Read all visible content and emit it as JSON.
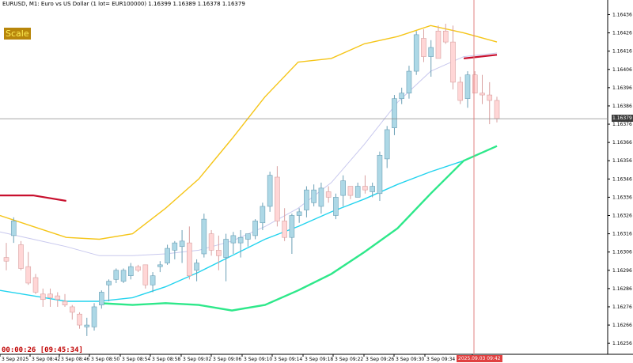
{
  "header": {
    "title": "EURUSD, M1:  Euro vs US Dollar (1 lot= EUR100000)  1.16399 1.16389 1.16378 1.16379"
  },
  "badge": {
    "label": "Scale"
  },
  "timer": {
    "text": "00:00:26 [09:45:34]"
  },
  "current_price": {
    "label": "1.16379"
  },
  "time_marker": {
    "label": "2025.09.03 09:42"
  },
  "colors": {
    "bull_body": "#add8e6",
    "bear_body": "#ffd6d6",
    "bull_edge": "#6a9fb5",
    "bear_edge": "#d9a0a0",
    "ma_yellow": "#f5c518",
    "ma_cyan": "#22d3ee",
    "ma_green": "#2ee88a",
    "ma_red": "#c8102e",
    "ma_lavender": "#c8c8ee",
    "vline": "#e08080"
  },
  "chart_data": {
    "type": "candlestick",
    "symbol": "EURUSD",
    "timeframe": "M1",
    "ylim": [
      1.1625,
      1.16444
    ],
    "y_ticks": [
      "1.16436",
      "1.16426",
      "1.16416",
      "1.16406",
      "1.16396",
      "1.16386",
      "1.16376",
      "1.16366",
      "1.16356",
      "1.16346",
      "1.16336",
      "1.16326",
      "1.16316",
      "1.16306",
      "1.16296",
      "1.16286",
      "1.16276",
      "1.16266",
      "1.16256"
    ],
    "x_ticks": [
      "3 Sep 2025",
      "3 Sep 08:42",
      "3 Sep 08:46",
      "3 Sep 08:50",
      "3 Sep 08:54",
      "3 Sep 08:58",
      "3 Sep 09:02",
      "3 Sep 09:06",
      "3 Sep 09:10",
      "3 Sep 09:14",
      "3 Sep 09:18",
      "3 Sep 09:22",
      "3 Sep 09:26",
      "3 Sep 09:30",
      "3 Sep 09:34",
      "3 Sep 09:42"
    ],
    "candles": [
      {
        "o": 1.16303,
        "h": 1.16311,
        "l": 1.16296,
        "c": 1.16301
      },
      {
        "o": 1.16315,
        "h": 1.16325,
        "l": 1.16311,
        "c": 1.16323
      },
      {
        "o": 1.1631,
        "h": 1.16312,
        "l": 1.16296,
        "c": 1.16297
      },
      {
        "o": 1.16298,
        "h": 1.16306,
        "l": 1.16288,
        "c": 1.16289
      },
      {
        "o": 1.16292,
        "h": 1.16294,
        "l": 1.16283,
        "c": 1.16284
      },
      {
        "o": 1.16283,
        "h": 1.16286,
        "l": 1.16276,
        "c": 1.1628
      },
      {
        "o": 1.16283,
        "h": 1.16286,
        "l": 1.16276,
        "c": 1.16281
      },
      {
        "o": 1.16282,
        "h": 1.16284,
        "l": 1.16276,
        "c": 1.1628
      },
      {
        "o": 1.16279,
        "h": 1.16283,
        "l": 1.16276,
        "c": 1.16277
      },
      {
        "o": 1.16276,
        "h": 1.16277,
        "l": 1.16269,
        "c": 1.16273
      },
      {
        "o": 1.16272,
        "h": 1.16273,
        "l": 1.16264,
        "c": 1.16266
      },
      {
        "o": 1.16265,
        "h": 1.1627,
        "l": 1.1626,
        "c": 1.16266
      },
      {
        "o": 1.16265,
        "h": 1.16278,
        "l": 1.16263,
        "c": 1.16276
      },
      {
        "o": 1.16277,
        "h": 1.16285,
        "l": 1.16275,
        "c": 1.16284
      },
      {
        "o": 1.16288,
        "h": 1.16291,
        "l": 1.16279,
        "c": 1.1629
      },
      {
        "o": 1.16291,
        "h": 1.16297,
        "l": 1.16289,
        "c": 1.16296
      },
      {
        "o": 1.1629,
        "h": 1.16297,
        "l": 1.16289,
        "c": 1.16296
      },
      {
        "o": 1.16293,
        "h": 1.163,
        "l": 1.16291,
        "c": 1.16298
      },
      {
        "o": 1.16298,
        "h": 1.16299,
        "l": 1.16295,
        "c": 1.16296
      },
      {
        "o": 1.16299,
        "h": 1.16299,
        "l": 1.16286,
        "c": 1.16288
      },
      {
        "o": 1.16288,
        "h": 1.16295,
        "l": 1.16284,
        "c": 1.16293
      },
      {
        "o": 1.16298,
        "h": 1.16301,
        "l": 1.16295,
        "c": 1.16299
      },
      {
        "o": 1.163,
        "h": 1.1631,
        "l": 1.16299,
        "c": 1.16308
      },
      {
        "o": 1.16307,
        "h": 1.16312,
        "l": 1.16302,
        "c": 1.16311
      },
      {
        "o": 1.16309,
        "h": 1.16318,
        "l": 1.163,
        "c": 1.16312
      },
      {
        "o": 1.16311,
        "h": 1.1632,
        "l": 1.16291,
        "c": 1.16293
      },
      {
        "o": 1.16296,
        "h": 1.16302,
        "l": 1.1629,
        "c": 1.163
      },
      {
        "o": 1.16305,
        "h": 1.16327,
        "l": 1.16303,
        "c": 1.16324
      },
      {
        "o": 1.16316,
        "h": 1.16318,
        "l": 1.16304,
        "c": 1.16307
      },
      {
        "o": 1.16307,
        "h": 1.16315,
        "l": 1.16296,
        "c": 1.16304
      },
      {
        "o": 1.16303,
        "h": 1.16316,
        "l": 1.1629,
        "c": 1.16313
      },
      {
        "o": 1.16311,
        "h": 1.16317,
        "l": 1.16305,
        "c": 1.16315
      },
      {
        "o": 1.16311,
        "h": 1.16318,
        "l": 1.16303,
        "c": 1.16314
      },
      {
        "o": 1.16313,
        "h": 1.16316,
        "l": 1.16309,
        "c": 1.16316
      },
      {
        "o": 1.16315,
        "h": 1.16324,
        "l": 1.16313,
        "c": 1.16323
      },
      {
        "o": 1.16322,
        "h": 1.16333,
        "l": 1.16318,
        "c": 1.16331
      },
      {
        "o": 1.16331,
        "h": 1.1635,
        "l": 1.16328,
        "c": 1.16348
      },
      {
        "o": 1.16347,
        "h": 1.16353,
        "l": 1.1632,
        "c": 1.16323
      },
      {
        "o": 1.16323,
        "h": 1.1633,
        "l": 1.16312,
        "c": 1.16314
      },
      {
        "o": 1.16314,
        "h": 1.16327,
        "l": 1.16305,
        "c": 1.16326
      },
      {
        "o": 1.16326,
        "h": 1.1633,
        "l": 1.16322,
        "c": 1.16328
      },
      {
        "o": 1.16329,
        "h": 1.16342,
        "l": 1.16325,
        "c": 1.1634
      },
      {
        "o": 1.16333,
        "h": 1.16343,
        "l": 1.16331,
        "c": 1.1634
      },
      {
        "o": 1.16331,
        "h": 1.16344,
        "l": 1.16327,
        "c": 1.16341
      },
      {
        "o": 1.16339,
        "h": 1.16342,
        "l": 1.16333,
        "c": 1.16336
      },
      {
        "o": 1.16326,
        "h": 1.16338,
        "l": 1.16324,
        "c": 1.16336
      },
      {
        "o": 1.16337,
        "h": 1.16348,
        "l": 1.16331,
        "c": 1.16345
      },
      {
        "o": 1.16342,
        "h": 1.16342,
        "l": 1.16335,
        "c": 1.16337
      },
      {
        "o": 1.16336,
        "h": 1.16344,
        "l": 1.16336,
        "c": 1.16342
      },
      {
        "o": 1.16342,
        "h": 1.16348,
        "l": 1.16338,
        "c": 1.1634
      },
      {
        "o": 1.16339,
        "h": 1.16344,
        "l": 1.16336,
        "c": 1.16342
      },
      {
        "o": 1.16338,
        "h": 1.16361,
        "l": 1.16334,
        "c": 1.16359
      },
      {
        "o": 1.16357,
        "h": 1.16375,
        "l": 1.16352,
        "c": 1.16373
      },
      {
        "o": 1.16374,
        "h": 1.16392,
        "l": 1.1637,
        "c": 1.1639
      },
      {
        "o": 1.1639,
        "h": 1.16396,
        "l": 1.16387,
        "c": 1.16393
      },
      {
        "o": 1.16393,
        "h": 1.16408,
        "l": 1.1639,
        "c": 1.16405
      },
      {
        "o": 1.16405,
        "h": 1.16427,
        "l": 1.16403,
        "c": 1.16425
      },
      {
        "o": 1.16423,
        "h": 1.16428,
        "l": 1.1641,
        "c": 1.16413
      },
      {
        "o": 1.16413,
        "h": 1.16422,
        "l": 1.16402,
        "c": 1.16418
      },
      {
        "o": 1.16427,
        "h": 1.1643,
        "l": 1.16412,
        "c": 1.16412
      },
      {
        "o": 1.16427,
        "h": 1.16431,
        "l": 1.1642,
        "c": 1.16421
      },
      {
        "o": 1.16421,
        "h": 1.1643,
        "l": 1.16395,
        "c": 1.16399
      },
      {
        "o": 1.16399,
        "h": 1.16402,
        "l": 1.16387,
        "c": 1.16389
      },
      {
        "o": 1.1639,
        "h": 1.16405,
        "l": 1.16385,
        "c": 1.16403
      },
      {
        "o": 1.16403,
        "h": 1.16405,
        "l": 1.16393,
        "c": 1.16393
      },
      {
        "o": 1.16393,
        "h": 1.16403,
        "l": 1.16387,
        "c": 1.16392
      },
      {
        "o": 1.16392,
        "h": 1.16399,
        "l": 1.16376,
        "c": 1.16389
      },
      {
        "o": 1.16389,
        "h": 1.16391,
        "l": 1.16377,
        "c": 1.16379
      }
    ],
    "moving_averages": [
      {
        "color_key": "ma_yellow",
        "values": [
          1.16326,
          1.1632,
          1.16314,
          1.16313,
          1.16316,
          1.1633,
          1.16346,
          1.16368,
          1.16391,
          1.1641,
          1.16412,
          1.1642,
          1.16424,
          1.1643,
          1.16426,
          1.16421
        ]
      },
      {
        "color_key": "ma_cyan",
        "values": [
          1.16285,
          1.16282,
          1.16279,
          1.16279,
          1.16281,
          1.16287,
          1.16295,
          1.16304,
          1.16313,
          1.1632,
          1.16328,
          1.16335,
          1.16343,
          1.1635,
          1.16356,
          1.16364
        ]
      },
      {
        "color_key": "ma_green",
        "values": [
          null,
          null,
          null,
          1.16278,
          1.16277,
          1.16278,
          1.16277,
          1.16274,
          1.16277,
          1.16285,
          1.16294,
          1.16306,
          1.16319,
          1.16338,
          1.16356,
          1.16364
        ]
      },
      {
        "color_key": "ma_red",
        "values": [
          1.16337,
          1.16337,
          1.16334,
          null,
          null,
          null,
          null,
          null,
          null,
          null,
          null,
          null,
          null,
          null,
          1.16412,
          1.16414
        ]
      },
      {
        "color_key": "ma_lavender",
        "values": [
          1.16317,
          1.16313,
          1.16309,
          1.16304,
          1.16304,
          1.16305,
          1.16307,
          1.16312,
          1.1632,
          1.1633,
          1.16344,
          1.16365,
          1.16388,
          1.16405,
          1.16413,
          1.16415
        ]
      }
    ],
    "current_price": 1.16379
  }
}
